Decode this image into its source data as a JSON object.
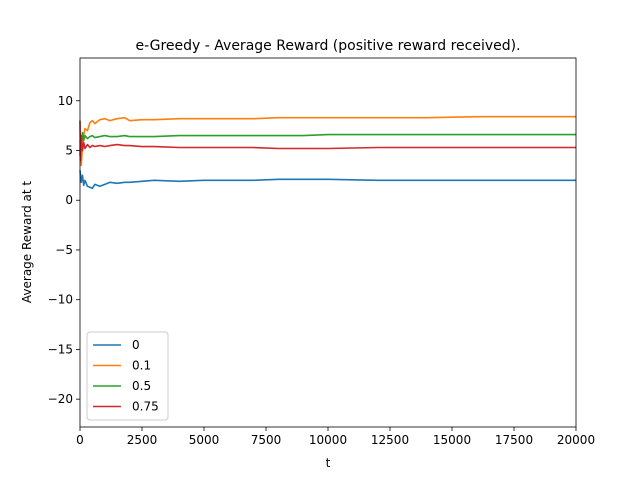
{
  "chart_data": {
    "type": "line",
    "title": "e-Greedy - Average Reward (positive reward received).",
    "xlabel": "t",
    "ylabel": "Average Reward at t",
    "xlim": [
      0,
      20000
    ],
    "ylim": [
      -22.8,
      14.3
    ],
    "xticks": [
      0,
      2500,
      5000,
      7500,
      10000,
      12500,
      15000,
      17500,
      20000
    ],
    "xtick_labels": [
      "0",
      "2500",
      "5000",
      "7500",
      "10000",
      "12500",
      "15000",
      "17500",
      "20000"
    ],
    "yticks": [
      -20,
      -15,
      -10,
      -5,
      0,
      5,
      10
    ],
    "ytick_labels": [
      "−20",
      "−15",
      "−10",
      "−5",
      "0",
      "5",
      "10"
    ],
    "grid": false,
    "legend_position": "lower-left",
    "series": [
      {
        "name": "0",
        "color": "#1f77b4",
        "x": [
          0,
          20,
          50,
          100,
          150,
          200,
          300,
          400,
          500,
          600,
          800,
          1000,
          1200,
          1500,
          1800,
          2000,
          2500,
          3000,
          4000,
          5000,
          6000,
          7000,
          8000,
          9000,
          10000,
          12000,
          14000,
          16000,
          18000,
          20000
        ],
        "y": [
          3.0,
          2.6,
          1.8,
          2.5,
          1.5,
          2.0,
          1.4,
          1.3,
          1.2,
          1.6,
          1.4,
          1.6,
          1.8,
          1.7,
          1.8,
          1.8,
          1.9,
          2.0,
          1.9,
          2.0,
          2.0,
          2.0,
          2.1,
          2.1,
          2.1,
          2.0,
          2.0,
          2.0,
          2.0,
          2.0
        ]
      },
      {
        "name": "0.1",
        "color": "#ff7f0e",
        "x": [
          0,
          20,
          50,
          100,
          150,
          200,
          300,
          400,
          500,
          600,
          800,
          1000,
          1200,
          1500,
          1800,
          2000,
          2500,
          3000,
          4000,
          5000,
          6000,
          7000,
          8000,
          9000,
          10000,
          12000,
          14000,
          16000,
          18000,
          20000
        ],
        "y": [
          6.0,
          4.5,
          3.5,
          5.5,
          6.5,
          7.2,
          7.0,
          7.8,
          8.0,
          7.7,
          8.1,
          8.2,
          8.0,
          8.2,
          8.3,
          8.0,
          8.1,
          8.1,
          8.2,
          8.2,
          8.2,
          8.2,
          8.3,
          8.3,
          8.3,
          8.3,
          8.3,
          8.4,
          8.4,
          8.4
        ]
      },
      {
        "name": "0.5",
        "color": "#2ca02c",
        "x": [
          0,
          20,
          50,
          100,
          150,
          200,
          300,
          400,
          500,
          600,
          800,
          1000,
          1200,
          1500,
          1800,
          2000,
          2500,
          3000,
          4000,
          5000,
          6000,
          7000,
          8000,
          9000,
          10000,
          12000,
          14000,
          16000,
          18000,
          20000
        ],
        "y": [
          4.5,
          6.5,
          5.5,
          6.8,
          6.0,
          6.5,
          6.2,
          6.4,
          6.5,
          6.3,
          6.4,
          6.5,
          6.4,
          6.4,
          6.5,
          6.4,
          6.4,
          6.4,
          6.5,
          6.5,
          6.5,
          6.5,
          6.5,
          6.5,
          6.6,
          6.6,
          6.6,
          6.6,
          6.6,
          6.6
        ]
      },
      {
        "name": "0.75",
        "color": "#d62728",
        "x": [
          0,
          20,
          50,
          100,
          150,
          200,
          300,
          400,
          500,
          600,
          800,
          1000,
          1200,
          1500,
          1800,
          2000,
          2500,
          3000,
          4000,
          5000,
          6000,
          7000,
          8000,
          9000,
          10000,
          12000,
          14000,
          16000,
          18000,
          20000
        ],
        "y": [
          8.0,
          4.0,
          6.5,
          5.0,
          5.8,
          5.2,
          5.6,
          5.3,
          5.5,
          5.4,
          5.5,
          5.4,
          5.5,
          5.6,
          5.5,
          5.5,
          5.4,
          5.4,
          5.3,
          5.3,
          5.3,
          5.3,
          5.2,
          5.2,
          5.2,
          5.3,
          5.3,
          5.3,
          5.3,
          5.3
        ]
      }
    ]
  }
}
